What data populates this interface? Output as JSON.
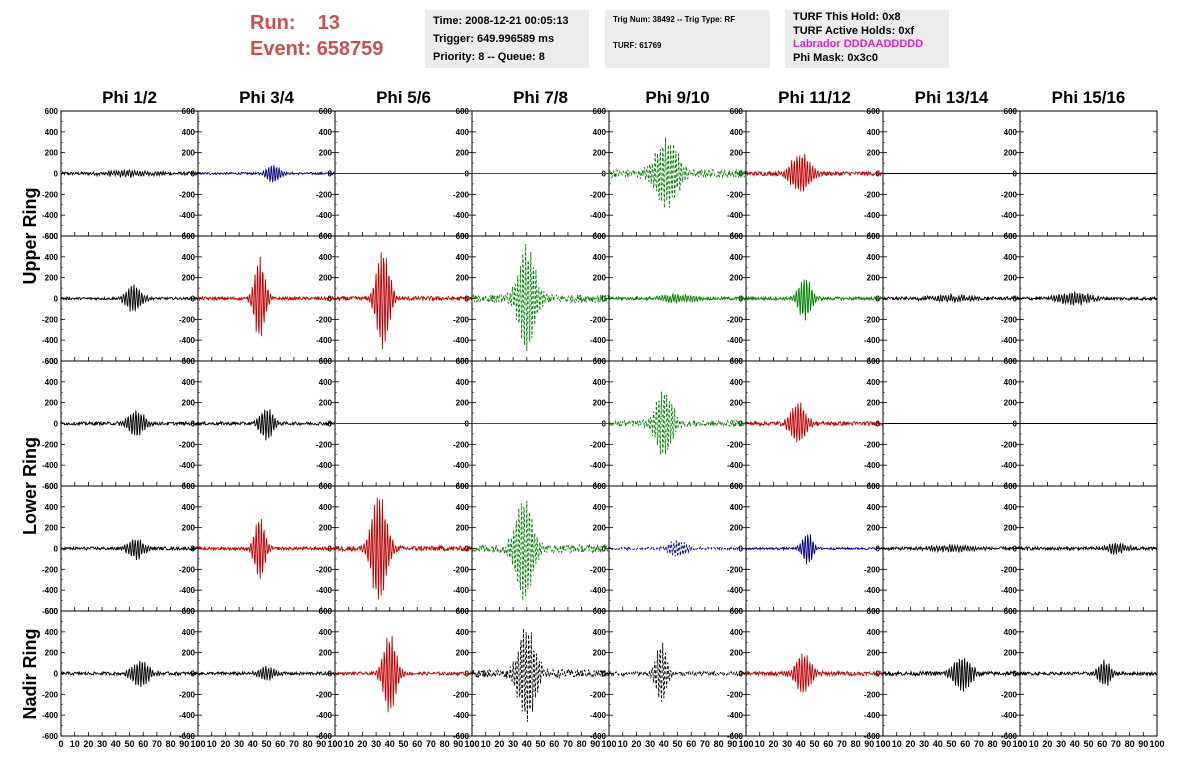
{
  "header": {
    "run_label": "Run:",
    "run_value": "13",
    "event_label": "Event:",
    "event_value": "658759",
    "time_line": "Time: 2008-12-21 00:05:13",
    "trigger_line": "Trigger: 649.996589 ms",
    "priority_line": "Priority: 8 -- Queue: 8",
    "trig_line": "Trig Num: 38492 -- Trig Type: RF",
    "turf_line": "TURF: 61769",
    "turf_hold_line": "TURF This Hold: 0x8",
    "turf_active_line": "TURF Active Holds: 0xf",
    "labrador_line": "Labrador DDDAADDDDD",
    "phi_mask_line": "Phi Mask: 0x3c0"
  },
  "colors": {
    "title_red": "#cc4f4f",
    "labrador_magenta": "#e020e0",
    "panel_bg": "#ececec",
    "trace_black": "#000000",
    "trace_red": "#c00000",
    "trace_blue": "#000080",
    "trace_green": "#008000"
  },
  "chart_data": {
    "type": "line",
    "columns": [
      "Phi 1/2",
      "Phi 3/4",
      "Phi 5/6",
      "Phi 7/8",
      "Phi 9/10",
      "Phi 11/12",
      "Phi 13/14",
      "Phi 15/16"
    ],
    "rows": [
      "Upper Ring",
      "Upper Ring",
      "Lower Ring",
      "Lower Ring",
      "Nadir Ring"
    ],
    "row_labels": [
      {
        "text": "Upper Ring",
        "spans_rows": [
          0,
          1
        ]
      },
      {
        "text": "Lower Ring",
        "spans_rows": [
          2,
          3
        ]
      },
      {
        "text": "Nadir Ring",
        "spans_rows": [
          4
        ]
      }
    ],
    "xlim": [
      0,
      100
    ],
    "ylim": [
      -600,
      600
    ],
    "x_ticks": [
      0,
      10,
      20,
      30,
      40,
      50,
      60,
      70,
      80,
      90,
      100
    ],
    "y_ticks": [
      -600,
      -400,
      -200,
      0,
      200,
      400,
      600
    ],
    "grid": false,
    "note_style": "solid trace = solid line; dashed trace = dashed line",
    "panels": [
      [
        {
          "color": "black",
          "style": "solid",
          "peak_x": 50,
          "amplitude": 30,
          "width": 40,
          "noise": 15
        },
        {
          "color": "blue",
          "style": "solid",
          "peak_x": 55,
          "amplitude": 90,
          "width": 12,
          "noise": 10
        },
        {
          "color": "red",
          "style": "solid",
          "peak_x": 50,
          "amplitude": 0,
          "width": 10,
          "noise": 0
        },
        {
          "color": "green",
          "style": "solid",
          "peak_x": 50,
          "amplitude": 0,
          "width": 10,
          "noise": 0
        },
        {
          "color": "green",
          "style": "dashed",
          "peak_x": 42,
          "amplitude": 320,
          "width": 22,
          "noise": 40
        },
        {
          "color": "red",
          "style": "solid",
          "peak_x": 40,
          "amplitude": 190,
          "width": 18,
          "noise": 20
        },
        {
          "color": "black",
          "style": "solid",
          "peak_x": 50,
          "amplitude": 0,
          "width": 10,
          "noise": 0
        },
        {
          "color": "black",
          "style": "solid",
          "peak_x": 50,
          "amplitude": 0,
          "width": 10,
          "noise": 0
        }
      ],
      [
        {
          "color": "black",
          "style": "solid",
          "peak_x": 53,
          "amplitude": 130,
          "width": 14,
          "noise": 12
        },
        {
          "color": "red",
          "style": "solid",
          "peak_x": 45,
          "amplitude": 400,
          "width": 10,
          "noise": 15
        },
        {
          "color": "red",
          "style": "solid",
          "peak_x": 35,
          "amplitude": 480,
          "width": 12,
          "noise": 20
        },
        {
          "color": "green",
          "style": "dashed",
          "peak_x": 40,
          "amplitude": 500,
          "width": 16,
          "noise": 40
        },
        {
          "color": "green",
          "style": "solid",
          "peak_x": 50,
          "amplitude": 40,
          "width": 30,
          "noise": 15
        },
        {
          "color": "green",
          "style": "solid",
          "peak_x": 43,
          "amplitude": 200,
          "width": 12,
          "noise": 15
        },
        {
          "color": "black",
          "style": "solid",
          "peak_x": 50,
          "amplitude": 30,
          "width": 40,
          "noise": 15
        },
        {
          "color": "black",
          "style": "solid",
          "peak_x": 40,
          "amplitude": 60,
          "width": 30,
          "noise": 15
        }
      ],
      [
        {
          "color": "black",
          "style": "solid",
          "peak_x": 55,
          "amplitude": 120,
          "width": 16,
          "noise": 15
        },
        {
          "color": "black",
          "style": "solid",
          "peak_x": 50,
          "amplitude": 160,
          "width": 12,
          "noise": 15
        },
        {
          "color": "red",
          "style": "solid",
          "peak_x": 50,
          "amplitude": 0,
          "width": 10,
          "noise": 0
        },
        {
          "color": "green",
          "style": "solid",
          "peak_x": 50,
          "amplitude": 0,
          "width": 10,
          "noise": 0
        },
        {
          "color": "green",
          "style": "dashed",
          "peak_x": 40,
          "amplitude": 320,
          "width": 16,
          "noise": 30
        },
        {
          "color": "red",
          "style": "solid",
          "peak_x": 38,
          "amplitude": 200,
          "width": 14,
          "noise": 20
        },
        {
          "color": "black",
          "style": "solid",
          "peak_x": 50,
          "amplitude": 0,
          "width": 10,
          "noise": 0
        },
        {
          "color": "black",
          "style": "solid",
          "peak_x": 50,
          "amplitude": 0,
          "width": 10,
          "noise": 0
        }
      ],
      [
        {
          "color": "black",
          "style": "solid",
          "peak_x": 55,
          "amplitude": 100,
          "width": 14,
          "noise": 15
        },
        {
          "color": "red",
          "style": "solid",
          "peak_x": 45,
          "amplitude": 300,
          "width": 10,
          "noise": 15
        },
        {
          "color": "red",
          "style": "solid",
          "peak_x": 32,
          "amplitude": 520,
          "width": 14,
          "noise": 25
        },
        {
          "color": "green",
          "style": "dashed",
          "peak_x": 38,
          "amplitude": 500,
          "width": 16,
          "noise": 40
        },
        {
          "color": "blue",
          "style": "dashed",
          "peak_x": 50,
          "amplitude": 80,
          "width": 16,
          "noise": 12
        },
        {
          "color": "blue",
          "style": "solid",
          "peak_x": 45,
          "amplitude": 150,
          "width": 10,
          "noise": 10
        },
        {
          "color": "black",
          "style": "solid",
          "peak_x": 50,
          "amplitude": 30,
          "width": 40,
          "noise": 15
        },
        {
          "color": "black",
          "style": "solid",
          "peak_x": 70,
          "amplitude": 50,
          "width": 20,
          "noise": 15
        }
      ],
      [
        {
          "color": "black",
          "style": "solid",
          "peak_x": 58,
          "amplitude": 120,
          "width": 16,
          "noise": 15
        },
        {
          "color": "black",
          "style": "solid",
          "peak_x": 50,
          "amplitude": 60,
          "width": 16,
          "noise": 15
        },
        {
          "color": "red",
          "style": "solid",
          "peak_x": 40,
          "amplitude": 380,
          "width": 12,
          "noise": 15
        },
        {
          "color": "black",
          "style": "dashed",
          "peak_x": 40,
          "amplitude": 460,
          "width": 16,
          "noise": 40
        },
        {
          "color": "black",
          "style": "dashed",
          "peak_x": 38,
          "amplitude": 300,
          "width": 10,
          "noise": 20
        },
        {
          "color": "red",
          "style": "solid",
          "peak_x": 42,
          "amplitude": 200,
          "width": 14,
          "noise": 20
        },
        {
          "color": "black",
          "style": "solid",
          "peak_x": 58,
          "amplitude": 170,
          "width": 16,
          "noise": 20
        },
        {
          "color": "black",
          "style": "solid",
          "peak_x": 62,
          "amplitude": 120,
          "width": 12,
          "noise": 15
        }
      ]
    ]
  }
}
